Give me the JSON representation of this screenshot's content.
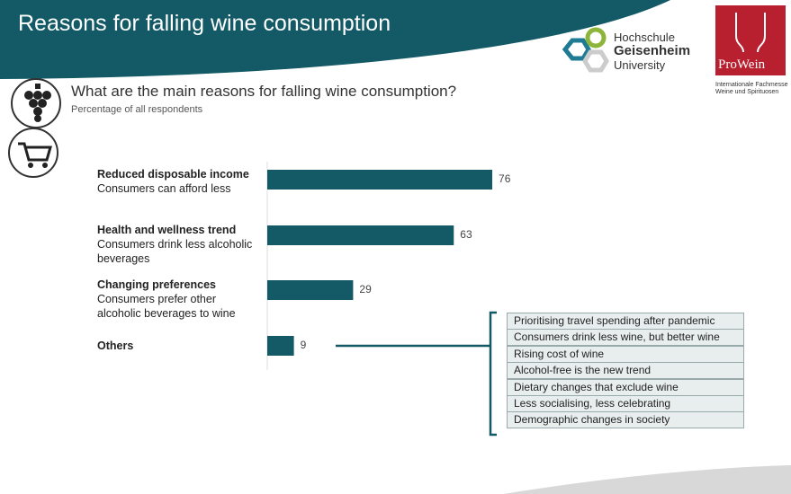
{
  "header": {
    "title": "Reasons for falling wine consumption"
  },
  "logos": {
    "university": [
      "Hochschule",
      "Geisenheim",
      "University"
    ],
    "fair": {
      "name": "ProWein",
      "tagline": [
        "Internationale Fachmesse",
        "Weine und Spirituosen"
      ]
    }
  },
  "chart_data": {
    "type": "bar",
    "orientation": "horizontal",
    "title": "What are the main reasons for falling wine consumption?",
    "subtitle": "Percentage of all respondents",
    "categories": [
      "Reduced disposable income",
      "Health and wellness trend",
      "Changing preferences",
      "Others"
    ],
    "descriptions": [
      "Consumers can afford less",
      "Consumers drink less alcoholic beverages",
      "Consumers prefer other alcoholic beverages to wine",
      null
    ],
    "values": [
      76,
      63,
      29,
      9
    ],
    "color": "#135a66",
    "others_breakdown": [
      "Prioritising travel spending after pandemic",
      "Consumers drink less wine, but better wine",
      "Rising cost of wine",
      "Alcohol-free is the new trend",
      "Dietary changes that exclude wine",
      "Less socialising, less celebrating",
      "Demographic changes in society"
    ]
  }
}
